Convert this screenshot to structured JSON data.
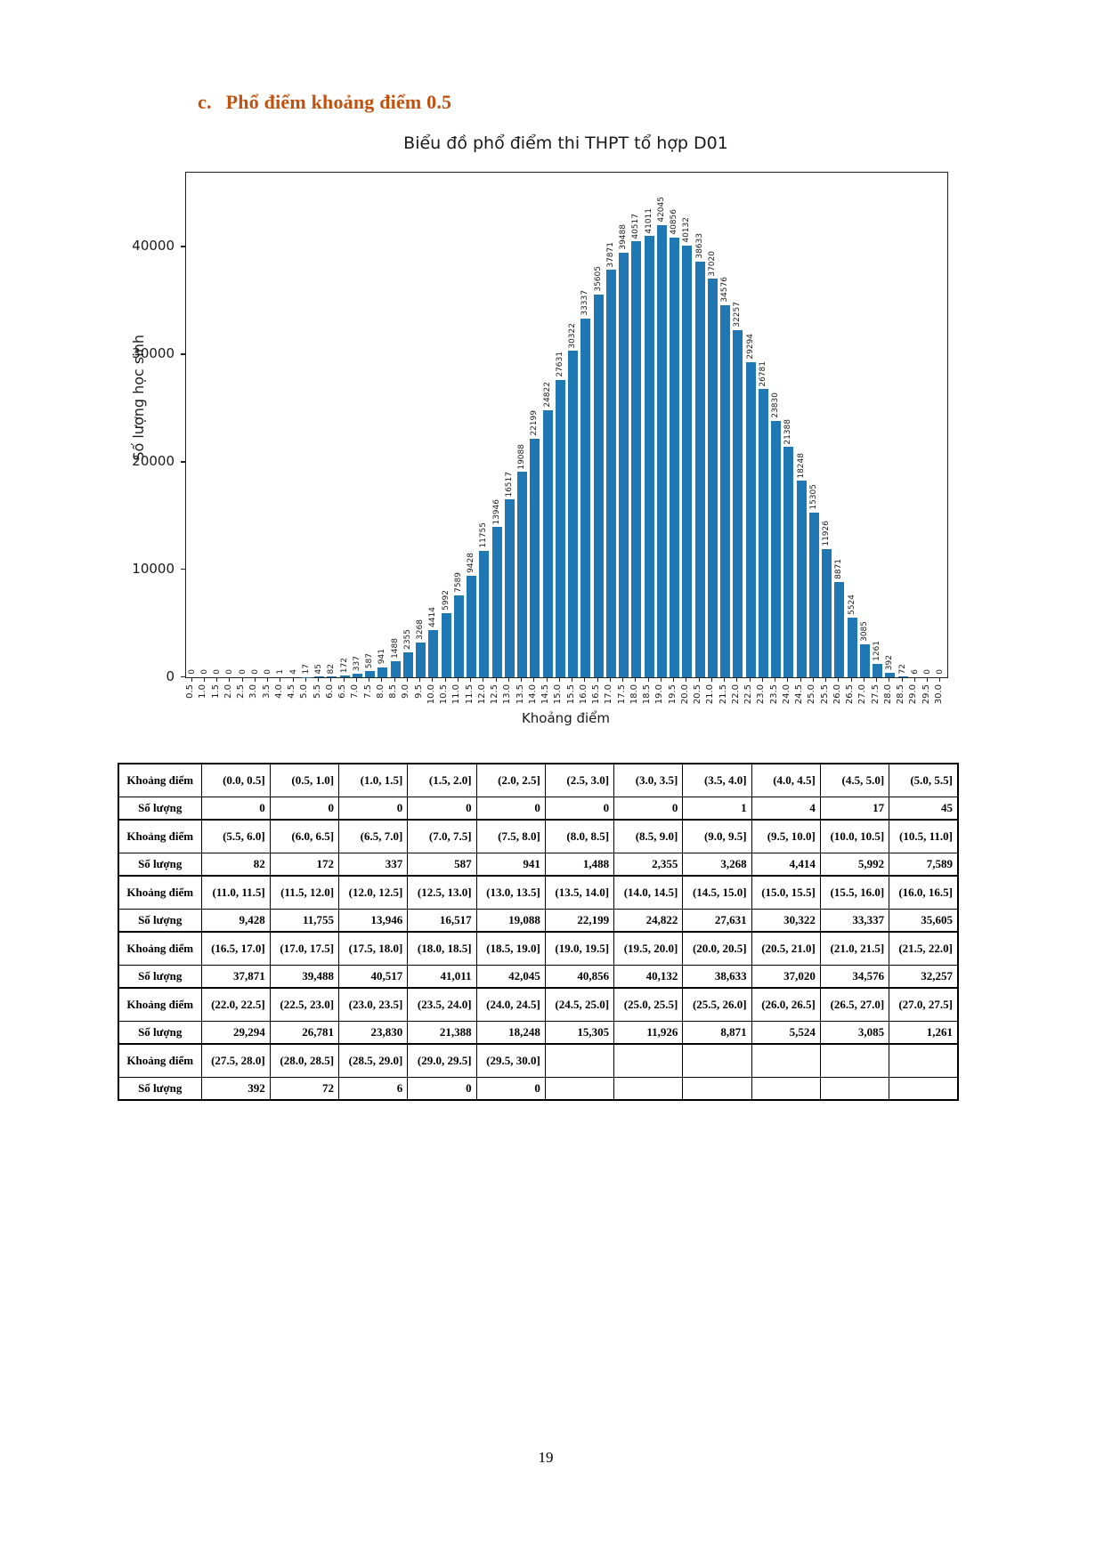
{
  "heading": {
    "index": "c.",
    "title": "Phổ điểm khoảng điểm 0.5",
    "color": "#C1510E"
  },
  "chart_data": {
    "type": "bar",
    "title": "Biểu đồ phổ điểm thi THPT tổ hợp D01",
    "xlabel": "Khoảng điểm",
    "ylabel": "Số lượng học sinh",
    "bar_color": "#1f77b4",
    "grid": false,
    "bar_labels": true,
    "categories": [
      "0.5",
      "1.0",
      "1.5",
      "2.0",
      "2.5",
      "3.0",
      "3.5",
      "4.0",
      "4.5",
      "5.0",
      "5.5",
      "6.0",
      "6.5",
      "7.0",
      "7.5",
      "8.0",
      "8.5",
      "9.0",
      "9.5",
      "10.0",
      "10.5",
      "11.0",
      "11.5",
      "12.0",
      "12.5",
      "13.0",
      "13.5",
      "14.0",
      "14.5",
      "15.0",
      "15.5",
      "16.0",
      "16.5",
      "17.0",
      "17.5",
      "18.0",
      "18.5",
      "19.0",
      "19.5",
      "20.0",
      "20.5",
      "21.0",
      "21.5",
      "22.0",
      "22.5",
      "23.0",
      "23.5",
      "24.0",
      "24.5",
      "25.0",
      "25.5",
      "26.0",
      "26.5",
      "27.0",
      "27.5",
      "28.0",
      "28.5",
      "29.0",
      "29.5",
      "30.0"
    ],
    "values": [
      0,
      0,
      0,
      0,
      0,
      0,
      0,
      1,
      4,
      17,
      45,
      82,
      172,
      337,
      587,
      941,
      1488,
      2355,
      3268,
      4414,
      5992,
      7589,
      9428,
      11755,
      13946,
      16517,
      19088,
      22199,
      24822,
      27631,
      30322,
      33337,
      35605,
      37871,
      39488,
      40517,
      41011,
      42045,
      40856,
      40132,
      38633,
      37020,
      34576,
      32257,
      29294,
      26781,
      23830,
      21388,
      18248,
      15305,
      11926,
      8871,
      5524,
      3085,
      1261,
      392,
      72,
      6,
      0,
      0
    ],
    "yticks": [
      0,
      10000,
      20000,
      30000,
      40000
    ],
    "ylim": [
      0,
      46900
    ]
  },
  "table": {
    "range_row_label": "Khoảng điểm",
    "count_row_label": "Số lượng",
    "pairs": [
      {
        "ranges": [
          "(0.0, 0.5]",
          "(0.5, 1.0]",
          "(1.0, 1.5]",
          "(1.5, 2.0]",
          "(2.0, 2.5]",
          "(2.5, 3.0]",
          "(3.0, 3.5]",
          "(3.5, 4.0]",
          "(4.0, 4.5]",
          "(4.5, 5.0]",
          "(5.0, 5.5]"
        ],
        "counts": [
          "0",
          "0",
          "0",
          "0",
          "0",
          "0",
          "0",
          "1",
          "4",
          "17",
          "45"
        ]
      },
      {
        "ranges": [
          "(5.5, 6.0]",
          "(6.0, 6.5]",
          "(6.5, 7.0]",
          "(7.0, 7.5]",
          "(7.5, 8.0]",
          "(8.0, 8.5]",
          "(8.5, 9.0]",
          "(9.0, 9.5]",
          "(9.5, 10.0]",
          "(10.0, 10.5]",
          "(10.5, 11.0]"
        ],
        "counts": [
          "82",
          "172",
          "337",
          "587",
          "941",
          "1,488",
          "2,355",
          "3,268",
          "4,414",
          "5,992",
          "7,589"
        ]
      },
      {
        "ranges": [
          "(11.0, 11.5]",
          "(11.5, 12.0]",
          "(12.0, 12.5]",
          "(12.5, 13.0]",
          "(13.0, 13.5]",
          "(13.5, 14.0]",
          "(14.0, 14.5]",
          "(14.5, 15.0]",
          "(15.0, 15.5]",
          "(15.5, 16.0]",
          "(16.0, 16.5]"
        ],
        "counts": [
          "9,428",
          "11,755",
          "13,946",
          "16,517",
          "19,088",
          "22,199",
          "24,822",
          "27,631",
          "30,322",
          "33,337",
          "35,605"
        ]
      },
      {
        "ranges": [
          "(16.5, 17.0]",
          "(17.0, 17.5]",
          "(17.5, 18.0]",
          "(18.0, 18.5]",
          "(18.5, 19.0]",
          "(19.0, 19.5]",
          "(19.5, 20.0]",
          "(20.0, 20.5]",
          "(20.5, 21.0]",
          "(21.0, 21.5]",
          "(21.5, 22.0]"
        ],
        "counts": [
          "37,871",
          "39,488",
          "40,517",
          "41,011",
          "42,045",
          "40,856",
          "40,132",
          "38,633",
          "37,020",
          "34,576",
          "32,257"
        ]
      },
      {
        "ranges": [
          "(22.0, 22.5]",
          "(22.5, 23.0]",
          "(23.0, 23.5]",
          "(23.5, 24.0]",
          "(24.0, 24.5]",
          "(24.5, 25.0]",
          "(25.0, 25.5]",
          "(25.5, 26.0]",
          "(26.0, 26.5]",
          "(26.5, 27.0]",
          "(27.0, 27.5]"
        ],
        "counts": [
          "29,294",
          "26,781",
          "23,830",
          "21,388",
          "18,248",
          "15,305",
          "11,926",
          "8,871",
          "5,524",
          "3,085",
          "1,261"
        ]
      },
      {
        "ranges": [
          "(27.5, 28.0]",
          "(28.0, 28.5]",
          "(28.5, 29.0]",
          "(29.0, 29.5]",
          "(29.5, 30.0]",
          "",
          "",
          "",
          "",
          "",
          ""
        ],
        "counts": [
          "392",
          "72",
          "6",
          "0",
          "0",
          "",
          "",
          "",
          "",
          "",
          ""
        ]
      }
    ]
  },
  "page": {
    "number": "19"
  }
}
